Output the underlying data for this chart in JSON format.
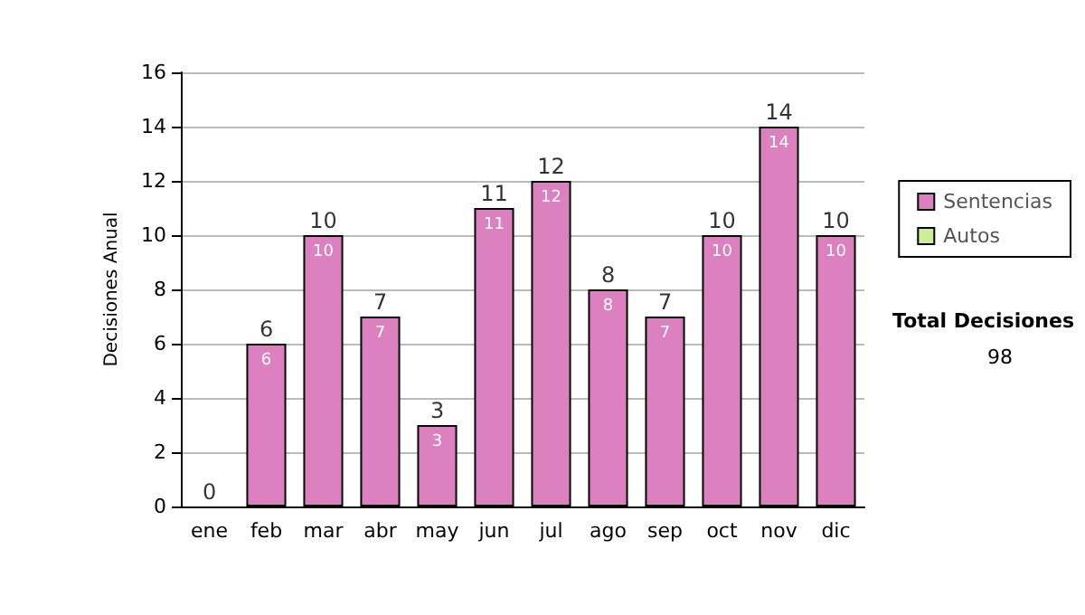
{
  "chart_data": {
    "type": "bar",
    "ylabel": "Decisiones Anual",
    "categories": [
      "ene",
      "feb",
      "mar",
      "abr",
      "may",
      "jun",
      "jul",
      "ago",
      "sep",
      "oct",
      "nov",
      "dic"
    ],
    "series": [
      {
        "name": "Sentencias",
        "color": "#dd80c0",
        "values": [
          0,
          6,
          10,
          7,
          3,
          11,
          12,
          8,
          7,
          10,
          14,
          10
        ],
        "value_labels": [
          null,
          "6",
          "10",
          "7",
          "3",
          "11",
          "12",
          "8",
          "7",
          "10",
          "14",
          "10"
        ]
      },
      {
        "name": "Autos",
        "color": "#ccee99",
        "values": [
          0,
          0,
          0,
          0,
          0,
          0,
          0,
          0,
          0,
          0,
          0,
          0
        ]
      }
    ],
    "stacked": true,
    "totals": [
      "0",
      "6",
      "10",
      "7",
      "3",
      "11",
      "12",
      "8",
      "7",
      "10",
      "14",
      "10"
    ],
    "ylim": [
      0,
      16
    ],
    "yticks": [
      0,
      2,
      4,
      6,
      8,
      10,
      12,
      14,
      16
    ],
    "grid": "y",
    "legend": "right",
    "annotations": [
      "Total Decisiones",
      "98"
    ]
  }
}
